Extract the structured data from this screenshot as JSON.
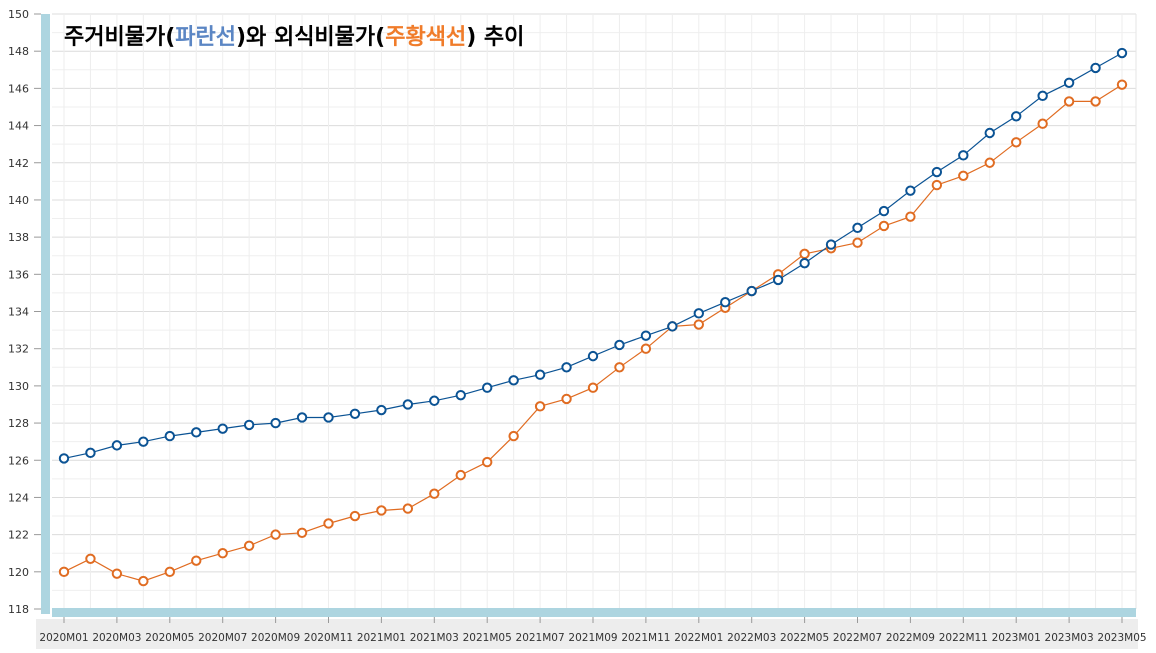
{
  "chart_data": {
    "type": "line",
    "title": {
      "part1": "주거비물가(",
      "part2": "파란선",
      "part3": ")와 외식비물가(",
      "part4": "주황색선",
      "part5": ") 추이"
    },
    "xlabel": "",
    "ylabel": "",
    "ylim": [
      118,
      150
    ],
    "yticks": [
      118,
      120,
      122,
      124,
      126,
      128,
      130,
      132,
      134,
      136,
      138,
      140,
      142,
      144,
      146,
      148,
      150
    ],
    "grid": true,
    "x": [
      "2020M01",
      "2020M02",
      "2020M03",
      "2020M04",
      "2020M05",
      "2020M06",
      "2020M07",
      "2020M08",
      "2020M09",
      "2020M10",
      "2020M11",
      "2020M12",
      "2021M01",
      "2021M02",
      "2021M03",
      "2021M04",
      "2021M05",
      "2021M06",
      "2021M07",
      "2021M08",
      "2021M09",
      "2021M10",
      "2021M11",
      "2021M12",
      "2022M01",
      "2022M02",
      "2022M03",
      "2022M04",
      "2022M05",
      "2022M06",
      "2022M07",
      "2022M08",
      "2022M09",
      "2022M10",
      "2022M11",
      "2022M12",
      "2023M01",
      "2023M02",
      "2023M03",
      "2023M04",
      "2023M05"
    ],
    "xtick_labels": [
      "2020M01",
      "2020M03",
      "2020M05",
      "2020M07",
      "2020M09",
      "2020M11",
      "2021M01",
      "2021M03",
      "2021M05",
      "2021M07",
      "2021M09",
      "2021M11",
      "2022M01",
      "2022M03",
      "2022M05",
      "2022M07",
      "2022M09",
      "2022M11",
      "2023M01",
      "2023M03",
      "2023M05"
    ],
    "series": [
      {
        "name": "주거비물가",
        "color": "#0b5394",
        "values": [
          126.1,
          126.4,
          126.8,
          127.0,
          127.3,
          127.5,
          127.7,
          127.9,
          128.0,
          128.3,
          128.3,
          128.5,
          128.7,
          129.0,
          129.2,
          129.5,
          129.9,
          130.3,
          130.6,
          131.0,
          131.6,
          132.2,
          132.7,
          133.2,
          133.9,
          134.5,
          135.1,
          135.7,
          136.6,
          137.6,
          138.5,
          139.4,
          140.5,
          141.5,
          142.4,
          143.6,
          144.5,
          145.6,
          146.3,
          147.1,
          147.9
        ]
      },
      {
        "name": "외식비물가",
        "color": "#e06c22",
        "values": [
          120.0,
          120.7,
          119.9,
          119.5,
          120.0,
          120.6,
          121.0,
          121.4,
          122.0,
          122.1,
          122.6,
          123.0,
          123.3,
          123.4,
          124.2,
          125.2,
          125.9,
          127.3,
          128.9,
          129.3,
          129.9,
          131.0,
          132.0,
          133.2,
          133.3,
          134.2,
          135.1,
          136.0,
          137.1,
          137.4,
          137.7,
          138.6,
          139.1,
          140.8,
          141.3,
          142.0,
          143.1,
          144.1,
          145.3,
          145.3,
          146.2
        ]
      }
    ]
  }
}
